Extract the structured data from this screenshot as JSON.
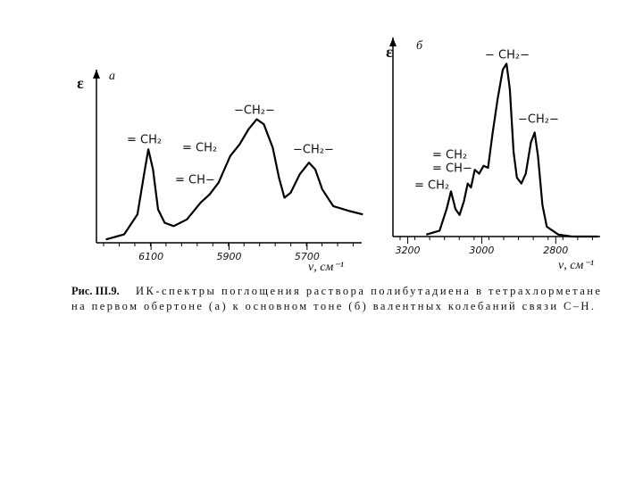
{
  "chart_data": [
    {
      "type": "line",
      "panel": "а",
      "ylabel": "ε",
      "xlabel": "ν, см⁻¹",
      "xlim": [
        6240,
        5560
      ],
      "ylim": [
        0,
        100
      ],
      "xticks": [
        6100,
        5900,
        5700
      ],
      "color": "#000000",
      "x": [
        6216,
        6169,
        6135,
        6118,
        6107,
        6095,
        6082,
        6065,
        6042,
        6008,
        5973,
        5950,
        5927,
        5910,
        5897,
        5873,
        5850,
        5829,
        5811,
        5788,
        5772,
        5758,
        5742,
        5719,
        5695,
        5679,
        5661,
        5633,
        5591,
        5557
      ],
      "values": [
        2,
        5,
        17,
        41,
        56,
        44,
        20,
        12,
        10,
        14,
        24,
        29,
        36,
        45,
        52,
        59,
        68,
        74,
        71,
        57,
        39,
        27,
        30,
        41,
        48,
        44,
        32,
        22,
        19,
        17
      ],
      "annotations": [
        "= CH₂",
        "= CH₂",
        "= CH−",
        "−CH₂−",
        "−CH₂−"
      ]
    },
    {
      "type": "line",
      "panel": "б",
      "ylabel": "ε",
      "xlabel": "ν, см⁻¹",
      "xlim": [
        3240,
        2680
      ],
      "ylim": [
        0,
        100
      ],
      "xticks": [
        3200,
        3000,
        2800
      ],
      "color": "#000000",
      "x": [
        3150,
        3114,
        3095,
        3083,
        3071,
        3060,
        3048,
        3038,
        3029,
        3019,
        3007,
        2995,
        2983,
        2971,
        2957,
        2943,
        2933,
        2924,
        2914,
        2905,
        2893,
        2881,
        2867,
        2857,
        2848,
        2836,
        2824,
        2793,
        2757,
        2686
      ],
      "values": [
        1,
        3,
        14,
        23,
        14,
        11,
        18,
        27,
        25,
        34,
        32,
        36,
        35,
        52,
        70,
        85,
        88,
        75,
        43,
        30,
        27,
        32,
        48,
        53,
        41,
        16,
        5,
        1,
        0,
        0
      ],
      "annotations": [
        "− CH₂−",
        "−CH₂−",
        "= CH₂",
        "= CH−",
        "= CH₂"
      ]
    }
  ],
  "caption": {
    "label": "Рис. III.9.",
    "line1": "ИК-спектры поглощения раствора полибутадиена в тетрахлорметане",
    "line2": "на первом обертоне (а) к основном тоне (б) валентных колебаний связи С–Н."
  }
}
